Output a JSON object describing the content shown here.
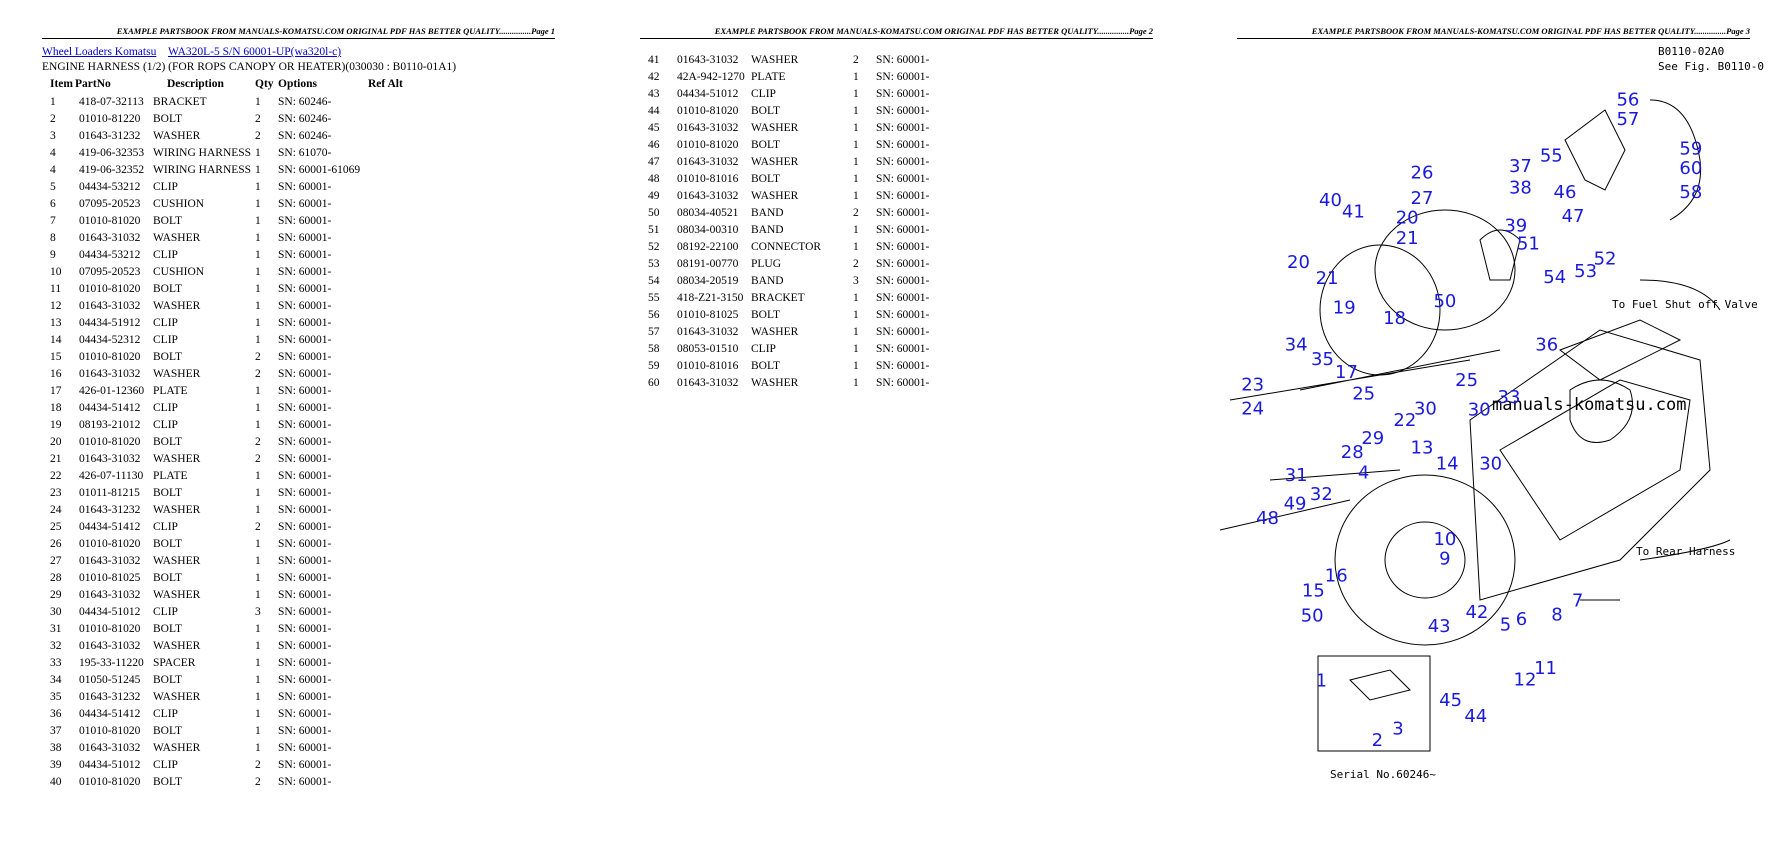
{
  "pages": [
    {
      "header": "EXAMPLE PARTSBOOK FROM MANUALS-KOMATSU.COM ORIGINAL PDF HAS BETTER QUALITY...............Page 1",
      "links": [
        "Wheel Loaders Komatsu",
        "WA320L-5 S/N 60001-UP(wa320l-c)"
      ],
      "subtitle": "ENGINE HARNESS (1/2) (FOR ROPS CANOPY OR HEATER)(030030 : B0110-01A1)",
      "columns": [
        "Item",
        "PartNo",
        "Description",
        "Qty",
        "Options",
        "Ref Alt"
      ],
      "rows": [
        [
          "1",
          "418-07-32113",
          "BRACKET",
          "1",
          "SN: 60246-"
        ],
        [
          "2",
          "01010-81220",
          "BOLT",
          "2",
          "SN: 60246-"
        ],
        [
          "3",
          "01643-31232",
          "WASHER",
          "2",
          "SN: 60246-"
        ],
        [
          "4",
          "419-06-32353",
          "WIRING HARNESS",
          "1",
          "SN: 61070-"
        ],
        [
          "4",
          "419-06-32352",
          "WIRING HARNESS",
          "1",
          "SN: 60001-61069"
        ],
        [
          "5",
          "04434-53212",
          "CLIP",
          "1",
          "SN: 60001-"
        ],
        [
          "6",
          "07095-20523",
          "CUSHION",
          "1",
          "SN: 60001-"
        ],
        [
          "7",
          "01010-81020",
          "BOLT",
          "1",
          "SN: 60001-"
        ],
        [
          "8",
          "01643-31032",
          "WASHER",
          "1",
          "SN: 60001-"
        ],
        [
          "9",
          "04434-53212",
          "CLIP",
          "1",
          "SN: 60001-"
        ],
        [
          "10",
          "07095-20523",
          "CUSHION",
          "1",
          "SN: 60001-"
        ],
        [
          "11",
          "01010-81020",
          "BOLT",
          "1",
          "SN: 60001-"
        ],
        [
          "12",
          "01643-31032",
          "WASHER",
          "1",
          "SN: 60001-"
        ],
        [
          "13",
          "04434-51912",
          "CLIP",
          "1",
          "SN: 60001-"
        ],
        [
          "14",
          "04434-52312",
          "CLIP",
          "1",
          "SN: 60001-"
        ],
        [
          "15",
          "01010-81020",
          "BOLT",
          "2",
          "SN: 60001-"
        ],
        [
          "16",
          "01643-31032",
          "WASHER",
          "2",
          "SN: 60001-"
        ],
        [
          "17",
          "426-01-12360",
          "PLATE",
          "1",
          "SN: 60001-"
        ],
        [
          "18",
          "04434-51412",
          "CLIP",
          "1",
          "SN: 60001-"
        ],
        [
          "19",
          "08193-21012",
          "CLIP",
          "1",
          "SN: 60001-"
        ],
        [
          "20",
          "01010-81020",
          "BOLT",
          "2",
          "SN: 60001-"
        ],
        [
          "21",
          "01643-31032",
          "WASHER",
          "2",
          "SN: 60001-"
        ],
        [
          "22",
          "426-07-11130",
          "PLATE",
          "1",
          "SN: 60001-"
        ],
        [
          "23",
          "01011-81215",
          "BOLT",
          "1",
          "SN: 60001-"
        ],
        [
          "24",
          "01643-31232",
          "WASHER",
          "1",
          "SN: 60001-"
        ],
        [
          "25",
          "04434-51412",
          "CLIP",
          "2",
          "SN: 60001-"
        ],
        [
          "26",
          "01010-81020",
          "BOLT",
          "1",
          "SN: 60001-"
        ],
        [
          "27",
          "01643-31032",
          "WASHER",
          "1",
          "SN: 60001-"
        ],
        [
          "28",
          "01010-81025",
          "BOLT",
          "1",
          "SN: 60001-"
        ],
        [
          "29",
          "01643-31032",
          "WASHER",
          "1",
          "SN: 60001-"
        ],
        [
          "30",
          "04434-51012",
          "CLIP",
          "3",
          "SN: 60001-"
        ],
        [
          "31",
          "01010-81020",
          "BOLT",
          "1",
          "SN: 60001-"
        ],
        [
          "32",
          "01643-31032",
          "WASHER",
          "1",
          "SN: 60001-"
        ],
        [
          "33",
          "195-33-11220",
          "SPACER",
          "1",
          "SN: 60001-"
        ],
        [
          "34",
          "01050-51245",
          "BOLT",
          "1",
          "SN: 60001-"
        ],
        [
          "35",
          "01643-31232",
          "WASHER",
          "1",
          "SN: 60001-"
        ],
        [
          "36",
          "04434-51412",
          "CLIP",
          "1",
          "SN: 60001-"
        ],
        [
          "37",
          "01010-81020",
          "BOLT",
          "1",
          "SN: 60001-"
        ],
        [
          "38",
          "01643-31032",
          "WASHER",
          "1",
          "SN: 60001-"
        ],
        [
          "39",
          "04434-51012",
          "CLIP",
          "2",
          "SN: 60001-"
        ],
        [
          "40",
          "01010-81020",
          "BOLT",
          "2",
          "SN: 60001-"
        ]
      ]
    },
    {
      "header": "EXAMPLE PARTSBOOK FROM MANUALS-KOMATSU.COM ORIGINAL PDF HAS BETTER QUALITY...............Page 2",
      "rows": [
        [
          "41",
          "01643-31032",
          "WASHER",
          "2",
          "SN: 60001-"
        ],
        [
          "42",
          "42A-942-1270",
          "PLATE",
          "1",
          "SN: 60001-"
        ],
        [
          "43",
          "04434-51012",
          "CLIP",
          "1",
          "SN: 60001-"
        ],
        [
          "44",
          "01010-81020",
          "BOLT",
          "1",
          "SN: 60001-"
        ],
        [
          "45",
          "01643-31032",
          "WASHER",
          "1",
          "SN: 60001-"
        ],
        [
          "46",
          "01010-81020",
          "BOLT",
          "1",
          "SN: 60001-"
        ],
        [
          "47",
          "01643-31032",
          "WASHER",
          "1",
          "SN: 60001-"
        ],
        [
          "48",
          "01010-81016",
          "BOLT",
          "1",
          "SN: 60001-"
        ],
        [
          "49",
          "01643-31032",
          "WASHER",
          "1",
          "SN: 60001-"
        ],
        [
          "50",
          "08034-40521",
          "BAND",
          "2",
          "SN: 60001-"
        ],
        [
          "51",
          "08034-00310",
          "BAND",
          "1",
          "SN: 60001-"
        ],
        [
          "52",
          "08192-22100",
          "CONNECTOR",
          "1",
          "SN: 60001-"
        ],
        [
          "53",
          "08191-00770",
          "PLUG",
          "2",
          "SN: 60001-"
        ],
        [
          "54",
          "08034-20519",
          "BAND",
          "3",
          "SN: 60001-"
        ],
        [
          "55",
          "418-Z21-3150",
          "BRACKET",
          "1",
          "SN: 60001-"
        ],
        [
          "56",
          "01010-81025",
          "BOLT",
          "1",
          "SN: 60001-"
        ],
        [
          "57",
          "01643-31032",
          "WASHER",
          "1",
          "SN: 60001-"
        ],
        [
          "58",
          "08053-01510",
          "CLIP",
          "1",
          "SN: 60001-"
        ],
        [
          "59",
          "01010-81016",
          "BOLT",
          "1",
          "SN: 60001-"
        ],
        [
          "60",
          "01643-31032",
          "WASHER",
          "1",
          "SN: 60001-"
        ]
      ]
    },
    {
      "header": "EXAMPLE PARTSBOOK FROM MANUALS-KOMATSU.COM ORIGINAL PDF HAS BETTER QUALITY...............Page 3",
      "diagram": {
        "notes": [
          "B0110-02A0",
          "See Fig. B0110-0",
          "To Fuel Shut off Valve",
          "To Rear Harness",
          "manuals-komatsu.com",
          "Serial No.60246~"
        ],
        "callouts": [
          "56",
          "57",
          "55",
          "59",
          "60",
          "58",
          "26",
          "37",
          "27",
          "38",
          "46",
          "47",
          "40",
          "41",
          "20",
          "39",
          "51",
          "21",
          "52",
          "53",
          "54",
          "20",
          "21",
          "50",
          "19",
          "18",
          "34",
          "35",
          "36",
          "17",
          "25",
          "23",
          "33",
          "25",
          "24",
          "30",
          "30",
          "22",
          "29",
          "28",
          "13",
          "31",
          "4",
          "14",
          "30",
          "32",
          "49",
          "48",
          "10",
          "9",
          "16",
          "7",
          "15",
          "6",
          "8",
          "42",
          "5",
          "50",
          "43",
          "11",
          "1",
          "12",
          "3",
          "45",
          "44",
          "2"
        ]
      }
    }
  ]
}
